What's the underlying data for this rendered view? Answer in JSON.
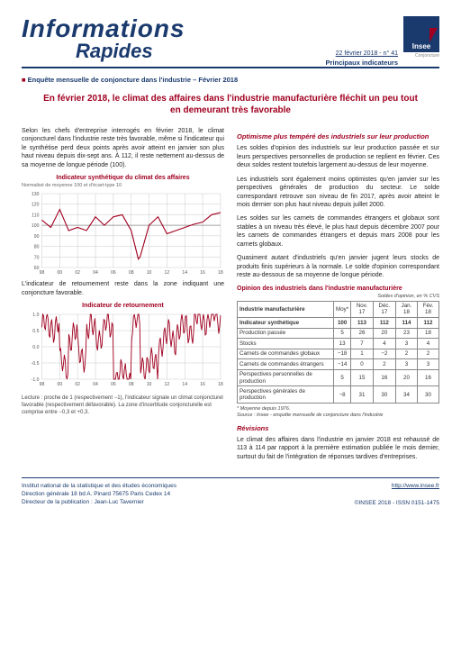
{
  "header": {
    "title1": "Informations",
    "title2": "Rapides",
    "date_issue": "22 février 2018 - n° 41",
    "indicators": "Principaux indicateurs",
    "logo_text": "Insee",
    "logo_sub": "Conjoncture"
  },
  "survey_line": "Enquête mensuelle de conjoncture dans l'industrie – Février 2018",
  "headline": "En février 2018, le climat des affaires dans l'industrie manufacturière fléchit un peu tout en demeurant très favorable",
  "left": {
    "para1": "Selon les chefs d'entreprise interrogés en février 2018, le climat conjoncturel dans l'industrie reste très favorable, même si l'indicateur qui le synthétise perd deux points après avoir atteint en janvier son plus haut niveau depuis dix-sept ans. À 112, il reste nettement au-dessus de sa moyenne de longue période (100).",
    "chart1_title": "Indicateur synthétique du climat des affaires",
    "chart1_sub": "Normalisé de moyenne 100 et d'écart-type 10",
    "para2": "L'indicateur de retournement reste dans la zone indiquant une conjoncture favorable.",
    "chart2_title": "Indicateur de retournement",
    "note": "Lecture : proche de 1 (respectivement −1), l'indicateur signale un climat conjoncturel favorable (respectivement défavorable). La zone d'incertitude conjoncturelle est comprise entre −0,3 et +0,3."
  },
  "right": {
    "sec1_title": "Optimisme plus tempéré des industriels sur leur production",
    "sec1_p1": "Les soldes d'opinion des industriels sur leur production passée et sur leurs perspectives personnelles de production se replient en février. Ces deux soldes restent toutefois largement au-dessus de leur moyenne.",
    "sec1_p2": "Les industriels sont également moins optimistes qu'en janvier sur les perspectives générales de production du secteur. Le solde correspondant retrouve son niveau de fin 2017, après avoir atteint le mois dernier son plus haut niveau depuis juillet 2000.",
    "sec1_p3": "Les soldes sur les carnets de commandes étrangers et globaux sont stables à un niveau très élevé, le plus haut depuis décembre 2007 pour les carnets de commandes étrangers et depuis mars 2008 pour les carnets globaux.",
    "sec1_p4": "Quasiment autant d'industriels qu'en janvier jugent leurs stocks de produits finis supérieurs à la normale. Le solde d'opinion correspondant reste au-dessous de sa moyenne de longue période.",
    "tbl_title": "Opinion des industriels dans l'industrie manufacturière",
    "tbl_caption": "Soldes d'opinion, en % CVS",
    "tbl_headers": [
      "Industrie manufacturière",
      "Moy*",
      "Nov. 17",
      "Déc. 17",
      "Jan. 18",
      "Fév. 18"
    ],
    "tbl_rows": [
      {
        "label": "Indicateur synthétique",
        "vals": [
          "100",
          "113",
          "112",
          "114",
          "112"
        ],
        "bold": true
      },
      {
        "label": "Production passée",
        "vals": [
          "5",
          "26",
          "20",
          "23",
          "18"
        ]
      },
      {
        "label": "Stocks",
        "vals": [
          "13",
          "7",
          "4",
          "3",
          "4"
        ]
      },
      {
        "label": "Carnets de commandes globaux",
        "vals": [
          "−18",
          "1",
          "−2",
          "2",
          "2"
        ]
      },
      {
        "label": "Carnets de commandes étrangers",
        "vals": [
          "−14",
          "0",
          "2",
          "3",
          "3"
        ]
      },
      {
        "label": "Perspectives personnelles de production",
        "vals": [
          "5",
          "15",
          "16",
          "20",
          "16"
        ]
      },
      {
        "label": "Perspectives générales de production",
        "vals": [
          "−8",
          "31",
          "30",
          "34",
          "30"
        ]
      }
    ],
    "tbl_foot1": "* Moyenne depuis 1976.",
    "tbl_foot2": "Source : Insee - enquête mensuelle de conjoncture dans l'industrie",
    "sec2_title": "Révisions",
    "sec2_p1": "Le climat des affaires dans l'industrie en janvier 2018 est rehaussé de 113 à 114 par rapport à la première estimation publiée le mois dernier, surtout du fait de l'intégration de réponses tardives d'entreprises."
  },
  "charts": {
    "chart1": {
      "type": "line",
      "xlim": [
        1998,
        2018
      ],
      "xticks": [
        98,
        "00",
        "02",
        "04",
        "06",
        "08",
        "10",
        "12",
        "14",
        "16",
        "18"
      ],
      "ylim": [
        60,
        130
      ],
      "yticks": [
        60,
        70,
        80,
        90,
        100,
        110,
        120,
        130
      ],
      "line_color": "#a00020",
      "grid_color": "#bcbcbc",
      "data": [
        [
          1998,
          105
        ],
        [
          1999,
          98
        ],
        [
          2000,
          115
        ],
        [
          2001,
          95
        ],
        [
          2002,
          98
        ],
        [
          2003,
          95
        ],
        [
          2004,
          108
        ],
        [
          2005,
          100
        ],
        [
          2006,
          108
        ],
        [
          2007,
          110
        ],
        [
          2008,
          95
        ],
        [
          2008.8,
          68
        ],
        [
          2009,
          70
        ],
        [
          2010,
          100
        ],
        [
          2011,
          108
        ],
        [
          2012,
          92
        ],
        [
          2013,
          95
        ],
        [
          2014,
          98
        ],
        [
          2015,
          101
        ],
        [
          2016,
          103
        ],
        [
          2017,
          110
        ],
        [
          2018,
          112
        ]
      ],
      "ref_line": 100
    },
    "chart2": {
      "type": "line",
      "xlim": [
        1998,
        2018
      ],
      "xticks": [
        98,
        "00",
        "02",
        "04",
        "06",
        "08",
        "10",
        "12",
        "14",
        "16",
        "18"
      ],
      "ylim": [
        -1,
        1
      ],
      "yticks": [
        -1.0,
        -0.5,
        0.0,
        0.5,
        1.0
      ],
      "line_color": "#a00020",
      "grid_color": "#bcbcbc",
      "band": [
        -0.3,
        0.3
      ]
    }
  },
  "footer": {
    "l1": "Institut national de la statistique et des études économiques",
    "l2": "Direction générale 18 bd A. Pinard 75675 Paris Cedex 14",
    "l3": "Directeur de la publication : Jean-Luc Tavernier",
    "url": "http://www.insee.fr",
    "copyright": "©INSEE 2018 - ISSN 0151-1475"
  }
}
